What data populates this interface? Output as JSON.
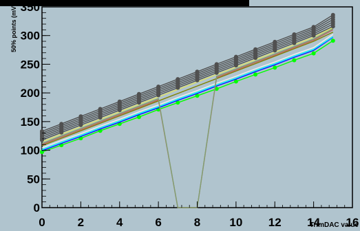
{
  "chart_data": {
    "type": "line",
    "title": "",
    "xlabel": "TrimDAC value",
    "ylabel": "50% points (mV)",
    "xlim": [
      0,
      16
    ],
    "ylim": [
      0,
      350
    ],
    "x_ticks": [
      0,
      2,
      4,
      6,
      8,
      10,
      12,
      14,
      16
    ],
    "y_ticks": [
      0,
      50,
      100,
      150,
      200,
      250,
      300,
      350
    ],
    "grid": false,
    "legend": "none",
    "plot_background": "#b0c4ce",
    "x": [
      0,
      1,
      2,
      3,
      4,
      5,
      6,
      7,
      8,
      9,
      10,
      11,
      12,
      13,
      14,
      15
    ],
    "series": [
      {
        "color": "#00ff00",
        "markers": true,
        "values": [
          97,
          109,
          121,
          134,
          146,
          158,
          171,
          183,
          195,
          207,
          220,
          232,
          244,
          257,
          269,
          291
        ]
      },
      {
        "color": "#1010ff",
        "markers": false,
        "values": [
          99,
          112,
          124,
          137,
          149,
          162,
          174,
          187,
          199,
          212,
          224,
          237,
          249,
          262,
          274,
          297
        ]
      },
      {
        "color": "#00ffff",
        "markers": false,
        "values": [
          101,
          114,
          126,
          139,
          151,
          164,
          176,
          189,
          201,
          214,
          226,
          239,
          251,
          264,
          276,
          298
        ]
      },
      {
        "color": "#f0f0f0",
        "markers": false,
        "values": [
          104,
          117,
          129,
          142,
          154,
          167,
          179,
          192,
          204,
          217,
          229,
          242,
          254,
          267,
          279,
          302
        ]
      },
      {
        "color": "#808000",
        "markers": false,
        "values": [
          108,
          121,
          134,
          147,
          160,
          173,
          186,
          199,
          212,
          225,
          238,
          251,
          264,
          277,
          290,
          306
        ]
      },
      {
        "color": "#c06060",
        "markers": false,
        "values": [
          110,
          123,
          136,
          149,
          162,
          175,
          188,
          0,
          0,
          227,
          240,
          253,
          266,
          279,
          292,
          310
        ]
      },
      {
        "color": "#7fa070",
        "markers": false,
        "values": [
          112,
          125,
          138,
          151,
          164,
          177,
          190,
          0,
          0,
          229,
          242,
          255,
          268,
          281,
          294,
          312
        ]
      },
      {
        "color": "#e0e060",
        "markers": false,
        "values": [
          115,
          128,
          141,
          154,
          167,
          180,
          193,
          206,
          219,
          232,
          245,
          258,
          271,
          284,
          297,
          314
        ]
      },
      {
        "color": "#505050",
        "markers": true,
        "values": [
          118,
          131,
          144,
          157,
          170,
          183,
          196,
          209,
          222,
          235,
          248,
          261,
          274,
          287,
          300,
          316
        ]
      },
      {
        "color": "#505050",
        "markers": true,
        "values": [
          121,
          134,
          147,
          160,
          173,
          186,
          199,
          212,
          225,
          238,
          251,
          264,
          277,
          290,
          303,
          320
        ]
      },
      {
        "color": "#505050",
        "markers": true,
        "values": [
          124,
          137,
          150,
          163,
          176,
          189,
          202,
          215,
          228,
          241,
          254,
          267,
          280,
          293,
          306,
          324
        ]
      },
      {
        "color": "#505050",
        "markers": true,
        "values": [
          127,
          140,
          153,
          166,
          179,
          192,
          205,
          218,
          231,
          244,
          257,
          270,
          283,
          296,
          309,
          328
        ]
      },
      {
        "color": "#505050",
        "markers": true,
        "values": [
          130,
          143,
          156,
          169,
          182,
          195,
          208,
          221,
          234,
          247,
          260,
          273,
          286,
          299,
          312,
          332
        ]
      },
      {
        "color": "#505050",
        "markers": true,
        "values": [
          133,
          146,
          159,
          172,
          185,
          198,
          211,
          224,
          237,
          250,
          263,
          276,
          289,
          302,
          315,
          336
        ]
      }
    ]
  }
}
